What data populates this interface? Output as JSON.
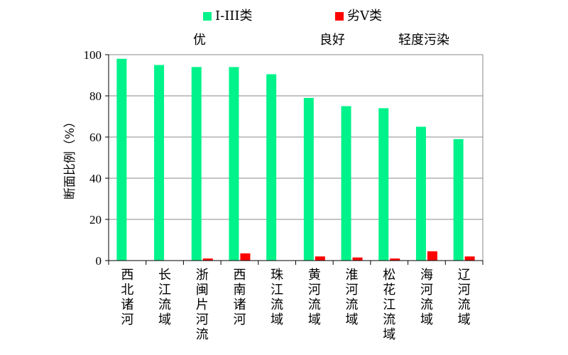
{
  "chart_data": {
    "type": "bar",
    "title": "",
    "xlabel": "",
    "ylabel": "断面比例（%）",
    "ylim": [
      0,
      100
    ],
    "yticks": [
      0,
      20,
      40,
      60,
      80,
      100
    ],
    "grid": true,
    "legend_position": "top",
    "categories": [
      "西北诸河",
      "长江流域",
      "浙闽片河流",
      "西南诸河",
      "珠江流域",
      "黄河流域",
      "淮河流域",
      "松花江流域",
      "海河流域",
      "辽河流域"
    ],
    "series": [
      {
        "name": "I-III类",
        "color": "#00f28a",
        "values": [
          98,
          95,
          94,
          94,
          90.5,
          79,
          75,
          74,
          65,
          59
        ]
      },
      {
        "name": "劣V类",
        "color": "#ff0000",
        "values": [
          0,
          0,
          1,
          3.5,
          0,
          2,
          1.5,
          1,
          4.5,
          2
        ]
      }
    ],
    "annotations": [
      "优",
      "良好",
      "轻度污染"
    ]
  }
}
